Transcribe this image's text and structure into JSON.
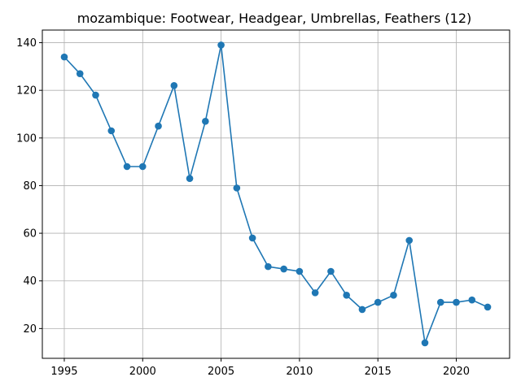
{
  "chart_data": {
    "type": "line",
    "title": "mozambique: Footwear, Headgear, Umbrellas, Feathers (12)",
    "xlabel": "",
    "ylabel": "",
    "x": [
      1995,
      1996,
      1997,
      1998,
      1999,
      2000,
      2001,
      2002,
      2003,
      2004,
      2005,
      2006,
      2007,
      2008,
      2009,
      2010,
      2011,
      2012,
      2013,
      2014,
      2015,
      2016,
      2017,
      2018,
      2019,
      2020,
      2021,
      2022
    ],
    "series": [
      {
        "values": [
          134,
          127,
          118,
          103,
          88,
          88,
          105,
          122,
          83,
          107,
          139,
          79,
          58,
          46,
          45,
          44,
          35,
          44,
          34,
          28,
          31,
          34,
          57,
          14,
          31,
          31,
          32,
          29
        ],
        "color": "#1f77b4",
        "marker": "circle"
      }
    ],
    "xlim": [
      1993.6,
      2023.4
    ],
    "ylim": [
      7.5,
      145.3
    ],
    "xticks": [
      1995,
      2000,
      2005,
      2010,
      2015,
      2020
    ],
    "yticks": [
      20,
      40,
      60,
      80,
      100,
      120,
      140
    ],
    "grid": true
  }
}
